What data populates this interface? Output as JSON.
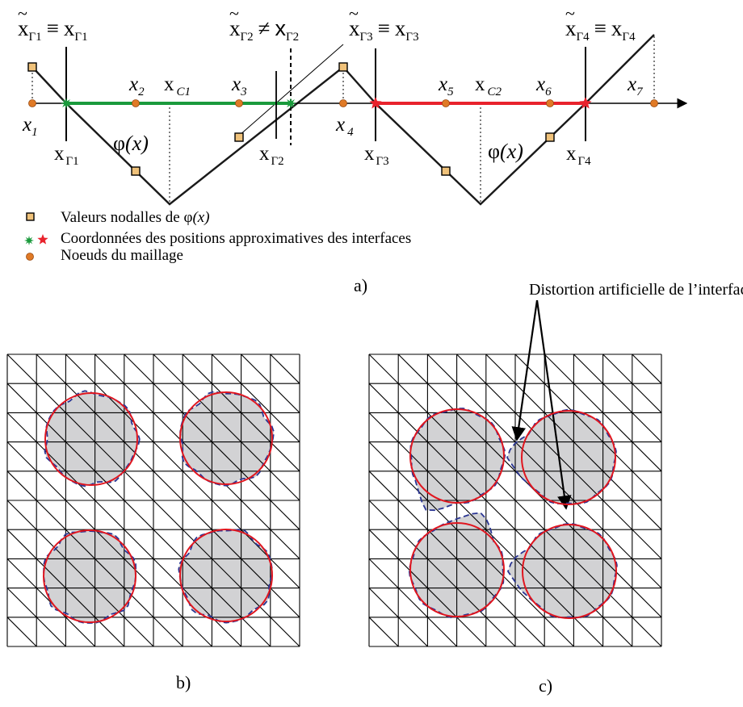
{
  "colors": {
    "axis": "#000000",
    "phi": "#1a1a1a",
    "green": "#1a9a3c",
    "red": "#e8222c",
    "node_orange": "#e07a26",
    "square_fill": "#f0c27a",
    "disc_fill": "#d2d2d4",
    "dashed_blue": "#2a3593",
    "circle_red": "#e0161f"
  },
  "panel_a": {
    "top_labels": {
      "g1": {
        "x": "x",
        "sub": "Γ1",
        "rel": "≡",
        "x2": "x",
        "sub2": "Γ1"
      },
      "g2": {
        "x": "x",
        "sub": "Γ2",
        "rel": "≠",
        "x2": "x",
        "sub2": "Γ2"
      },
      "g3": {
        "x": "x",
        "sub": "Γ3",
        "rel": "≡",
        "x2": "x",
        "sub2": "Γ3"
      },
      "g4": {
        "x": "x",
        "sub": "Γ4",
        "rel": "≡",
        "x2": "x",
        "sub2": "Γ4"
      }
    },
    "node_labels": [
      {
        "x": "x",
        "sub": "1"
      },
      {
        "x": "x",
        "sub": "2"
      },
      {
        "x": "x",
        "sub": "C1"
      },
      {
        "x": "x",
        "sub": "3"
      },
      {
        "x": "x",
        "sub": "4"
      },
      {
        "x": "x",
        "sub": "5"
      },
      {
        "x": "x",
        "sub": "C2"
      },
      {
        "x": "x",
        "sub": "6"
      },
      {
        "x": "x",
        "sub": "7"
      }
    ],
    "bottom_labels": [
      {
        "x": "x",
        "sub": "Γ1"
      },
      {
        "x": "x",
        "sub": "Γ2"
      },
      {
        "x": "x",
        "sub": "Γ3"
      },
      {
        "x": "x",
        "sub": "Γ4"
      }
    ],
    "phi_label": {
      "phi": "φ",
      "arg": "(x)"
    },
    "legend": [
      {
        "text": "Valeurs nodalles de ",
        "phi": "φ",
        "arg": "(x)"
      },
      {
        "text": "Coordonnées des positions approximatives des interfaces"
      },
      {
        "text": "Noeuds du maillage"
      }
    ],
    "caption": "a)"
  },
  "panel_b": {
    "caption": "b)",
    "grid_cells": 10
  },
  "panel_c": {
    "caption": "c)",
    "grid_cells": 10,
    "annotation": "Distortion artificielle de l’interface"
  }
}
